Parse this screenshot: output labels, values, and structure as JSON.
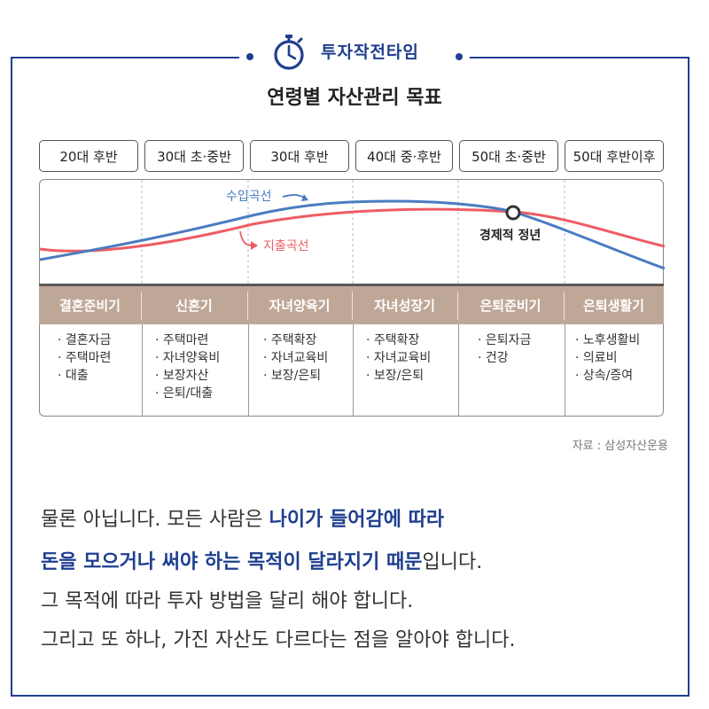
{
  "header": {
    "brand": "투자작전타임",
    "icon": "stopwatch-icon"
  },
  "title": "연령별 자산관리 목표",
  "age_groups": [
    "20대 후반",
    "30대 초·중반",
    "30대 후반",
    "40대 중·후반",
    "50대 초·중반",
    "50대 후반이후"
  ],
  "chart": {
    "income_label": "수입곡선",
    "expense_label": "지출곡선",
    "peak_label": "경제적 정년",
    "colors": {
      "income": "#4a7cc0",
      "expense": "#ee5c62"
    }
  },
  "stages": [
    "결혼준비기",
    "신혼기",
    "자녀양육기",
    "자녀성장기",
    "은퇴준비기",
    "은퇴생활기"
  ],
  "details": [
    [
      "· 결혼자금",
      "· 주택마련",
      "· 대출"
    ],
    [
      "· 주택마련",
      "· 자녀양육비",
      "· 보장자산",
      "· 은퇴/대출"
    ],
    [
      "· 주택확장",
      "· 자녀교육비",
      "· 보장/은퇴"
    ],
    [
      "· 주택확장",
      "· 자녀교육비",
      "· 보장/은퇴"
    ],
    [
      "· 은퇴자금",
      "· 건강"
    ],
    [
      "· 노후생활비",
      "· 의료비",
      "· 상속/증여"
    ]
  ],
  "source": "자료 : 삼성자산운용",
  "body": {
    "line1_a": "물론 아닙니다. 모든 사람은 ",
    "line1_b": "나이가 들어감에 따라",
    "line2_a": "돈을 모으거나 써야 하는 목적이 달라지기 때문",
    "line2_b": "입니다.",
    "line3": "그 목적에 따라 투자 방법을 달리 해야 합니다.",
    "line4": "그리고 또 하나, 가진 자산도 다르다는 점을 알아야 합니다."
  }
}
